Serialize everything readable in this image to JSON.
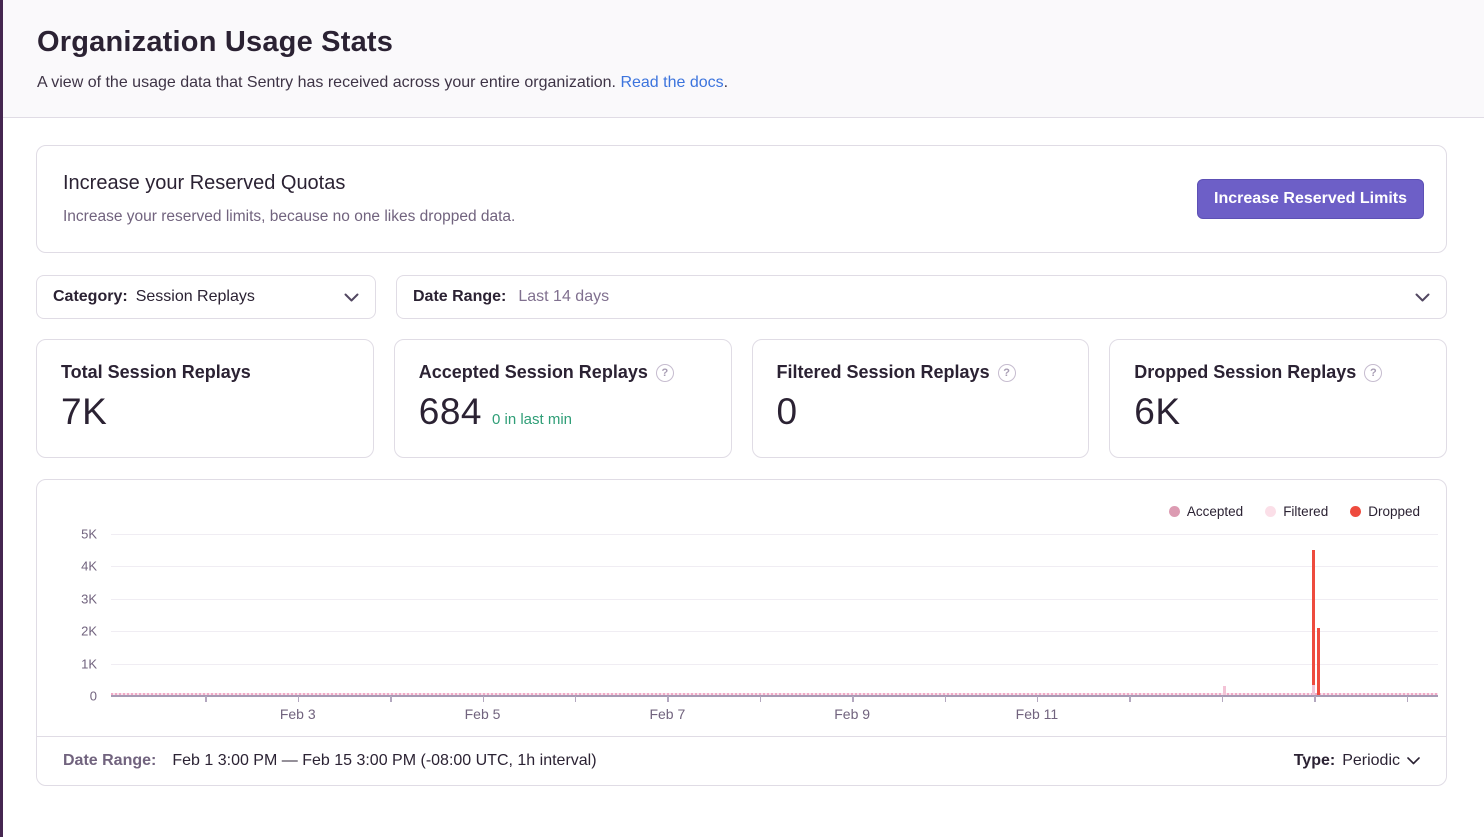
{
  "page": {
    "title": "Organization Usage Stats",
    "subtitle": "A view of the usage data that Sentry has received across your entire organization.",
    "subtitle_link": "Read the docs",
    "subtitle_suffix": "."
  },
  "quota_card": {
    "title": "Increase your Reserved Quotas",
    "description": "Increase your reserved limits, because no one likes dropped data.",
    "button_label": "Increase Reserved Limits"
  },
  "filters": {
    "category": {
      "label": "Category:",
      "value": "Session Replays"
    },
    "date_range": {
      "label": "Date Range:",
      "value": "Last 14 days"
    }
  },
  "stat_cards": [
    {
      "title": "Total Session Replays",
      "value": "7K"
    },
    {
      "title": "Accepted Session Replays",
      "value": "684",
      "secondary": "0 in last min"
    },
    {
      "title": "Filtered Session Replays",
      "value": "0"
    },
    {
      "title": "Dropped Session Replays",
      "value": "6K"
    }
  ],
  "chart": {
    "legend": [
      {
        "label": "Accepted",
        "color": "#dc9bb2"
      },
      {
        "label": "Filtered",
        "color": "#fbdfe8"
      },
      {
        "label": "Dropped",
        "color": "#ee4b3e"
      }
    ]
  },
  "chart_data": {
    "type": "bar",
    "title": "",
    "xlabel": "",
    "ylabel": "",
    "interval": "1h",
    "x_range": "Feb 1 3:00 PM — Feb 15 3:00 PM",
    "y_axis": {
      "max": 5000,
      "ticks": [
        0,
        1000,
        2000,
        3000,
        4000,
        5000
      ],
      "tick_labels": [
        "0",
        "1K",
        "2K",
        "3K",
        "4K",
        "5K"
      ]
    },
    "x_axis": {
      "tick_days": [
        "Feb 2",
        "Feb 3",
        "Feb 4",
        "Feb 5",
        "Feb 6",
        "Feb 7",
        "Feb 8",
        "Feb 9",
        "Feb 10",
        "Feb 11",
        "Feb 12",
        "Feb 13",
        "Feb 14",
        "Feb 15"
      ],
      "labeled_ticks": [
        "Feb 3",
        "Feb 5",
        "Feb 7",
        "Feb 9",
        "Feb 11"
      ],
      "first_tick_frac": 0.0711,
      "tick_step_frac": 0.06963
    },
    "series": [
      {
        "name": "Accepted",
        "color": "#dc9bb2",
        "note": "near-zero hourly values across the whole range (dashed baseline)",
        "total": 684
      },
      {
        "name": "Filtered",
        "color": "#fbdfe8",
        "total": 0
      },
      {
        "name": "Dropped",
        "color": "#ee4b3e",
        "total": "6K"
      }
    ],
    "bars": [
      {
        "series": "Accepted",
        "x": "Feb 13",
        "x_frac": 0.838,
        "value": 250
      },
      {
        "series": "Accepted",
        "x": "Feb 14",
        "x_frac": 0.905,
        "value": 300
      },
      {
        "series": "Dropped",
        "x": "Feb 14",
        "x_frac": 0.905,
        "value": 4150,
        "base": 300
      },
      {
        "series": "Dropped",
        "x": "Feb 14",
        "x_frac": 0.909,
        "value": 2050
      }
    ],
    "totals": {
      "total": "7K",
      "accepted": 684,
      "filtered": 0,
      "dropped": "6K"
    }
  },
  "chart_footer": {
    "date_range_label": "Date Range:",
    "date_range_value": "Feb 1 3:00 PM — Feb 15 3:00 PM (-08:00 UTC, 1h interval)",
    "type_label": "Type:",
    "type_value": "Periodic"
  },
  "colors": {
    "accent_purple": "#6d5fc7",
    "link_blue": "#3c74dd",
    "success_green": "#2f9e77",
    "dropped_red": "#ee4b3e",
    "accepted_pink": "#dc9bb2",
    "filtered_pink": "#fbdfe8",
    "axis_text": "#71637e",
    "border": "#e0dce5",
    "header_bg": "#faf9fb",
    "sidebar_edge": "#452650"
  }
}
